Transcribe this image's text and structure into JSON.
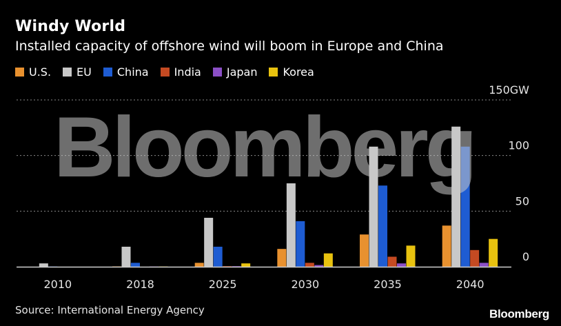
{
  "chart_data": {
    "type": "bar",
    "title": "Windy World",
    "subtitle": "Installed capacity of offshore wind will boom in Europe and China",
    "categories": [
      "2010",
      "2018",
      "2025",
      "2030",
      "2035",
      "2040"
    ],
    "series": [
      {
        "name": "U.S.",
        "color": "#e8912f",
        "values": [
          0,
          0.3,
          3.5,
          16,
          29,
          37
        ]
      },
      {
        "name": "EU",
        "color": "#c8c8c8",
        "values": [
          3,
          18,
          44,
          75,
          108,
          126
        ]
      },
      {
        "name": "China",
        "color": "#1e5cd2",
        "values": [
          0.2,
          3.5,
          18,
          41,
          73,
          108
        ]
      },
      {
        "name": "India",
        "color": "#c54a22",
        "values": [
          0,
          0,
          0.5,
          3.5,
          9,
          15
        ]
      },
      {
        "name": "Japan",
        "color": "#8b4fc6",
        "values": [
          0,
          0.2,
          0.5,
          1.5,
          3,
          3.5
        ]
      },
      {
        "name": "Korea",
        "color": "#e8c20f",
        "values": [
          0,
          0.2,
          3,
          12,
          19,
          25
        ]
      }
    ],
    "ylim": [
      0,
      150
    ],
    "yticks": [
      {
        "value": 0,
        "label": "0"
      },
      {
        "value": 50,
        "label": "50"
      },
      {
        "value": 100,
        "label": "100"
      },
      {
        "value": 150,
        "label": "150GW"
      }
    ],
    "grid": true,
    "legend_position": "top-left"
  },
  "source": "Source: International Energy Agency",
  "brand": "Bloomberg",
  "watermark": "Bloomberg"
}
